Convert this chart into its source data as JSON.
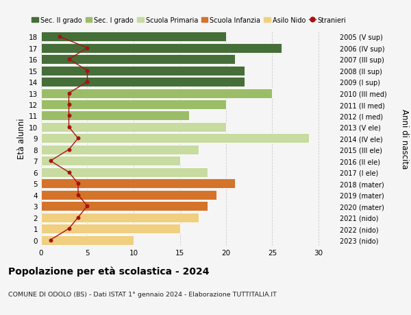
{
  "ages": [
    0,
    1,
    2,
    3,
    4,
    5,
    6,
    7,
    8,
    9,
    10,
    11,
    12,
    13,
    14,
    15,
    16,
    17,
    18
  ],
  "right_labels": [
    "2023 (nido)",
    "2022 (nido)",
    "2021 (nido)",
    "2020 (mater)",
    "2019 (mater)",
    "2018 (mater)",
    "2017 (I ele)",
    "2016 (II ele)",
    "2015 (III ele)",
    "2014 (IV ele)",
    "2013 (V ele)",
    "2012 (I med)",
    "2011 (II med)",
    "2010 (III med)",
    "2009 (I sup)",
    "2008 (II sup)",
    "2007 (III sup)",
    "2006 (IV sup)",
    "2005 (V sup)"
  ],
  "bar_values": [
    10,
    15,
    17,
    18,
    19,
    21,
    18,
    15,
    17,
    29,
    20,
    16,
    20,
    25,
    22,
    22,
    21,
    26,
    20
  ],
  "bar_colors": [
    "#f0d080",
    "#f0d080",
    "#f0d080",
    "#d4732a",
    "#d4732a",
    "#d4732a",
    "#c8dba0",
    "#c8dba0",
    "#c8dba0",
    "#c8dba0",
    "#c8dba0",
    "#9cbd68",
    "#9cbd68",
    "#9cbd68",
    "#456e38",
    "#456e38",
    "#456e38",
    "#456e38",
    "#456e38"
  ],
  "stranieri_values": [
    1,
    3,
    4,
    5,
    4,
    4,
    3,
    1,
    3,
    4,
    3,
    3,
    3,
    3,
    5,
    5,
    3,
    5,
    2
  ],
  "legend_labels": [
    "Sec. II grado",
    "Sec. I grado",
    "Scuola Primaria",
    "Scuola Infanzia",
    "Asilo Nido",
    "Stranieri"
  ],
  "legend_colors": [
    "#456e38",
    "#9cbd68",
    "#c8dba0",
    "#d4732a",
    "#f0d080",
    "#cc1111"
  ],
  "title_main": "Popolazione per età scolastica - 2024",
  "title_sub": "COMUNE DI ODOLO (BS) - Dati ISTAT 1° gennaio 2024 - Elaborazione TUTTITALIA.IT",
  "ylabel_left": "Età alunni",
  "ylabel_right": "Anni di nascita",
  "xlim": [
    0,
    32
  ],
  "bg_color": "#f5f5f5",
  "stranieri_color": "#aa1111"
}
